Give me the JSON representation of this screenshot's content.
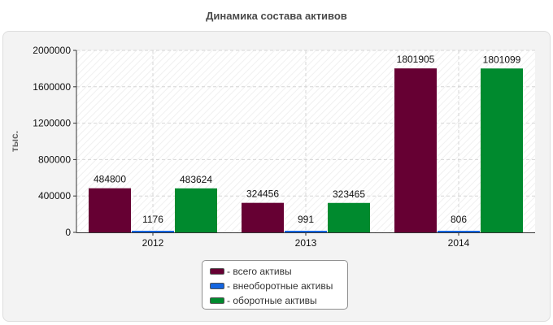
{
  "chart_data": {
    "type": "bar",
    "title": "Динамика состава активов",
    "ylabel": "тыс.",
    "xlabel": "",
    "categories": [
      "2012",
      "2013",
      "2014"
    ],
    "ylim": [
      0,
      2000000
    ],
    "yticks": [
      0,
      400000,
      800000,
      1200000,
      1600000,
      2000000
    ],
    "grid": true,
    "legend_position": "bottom-center",
    "series": [
      {
        "name": "- всего активы",
        "color": "#660033",
        "values": [
          484800,
          324456,
          1801905
        ]
      },
      {
        "name": "- внеоборотные активы",
        "color": "#1565e0",
        "values": [
          1176,
          991,
          806
        ]
      },
      {
        "name": "- оборотные активы",
        "color": "#008a2e",
        "values": [
          483624,
          323465,
          1801099
        ]
      }
    ]
  }
}
